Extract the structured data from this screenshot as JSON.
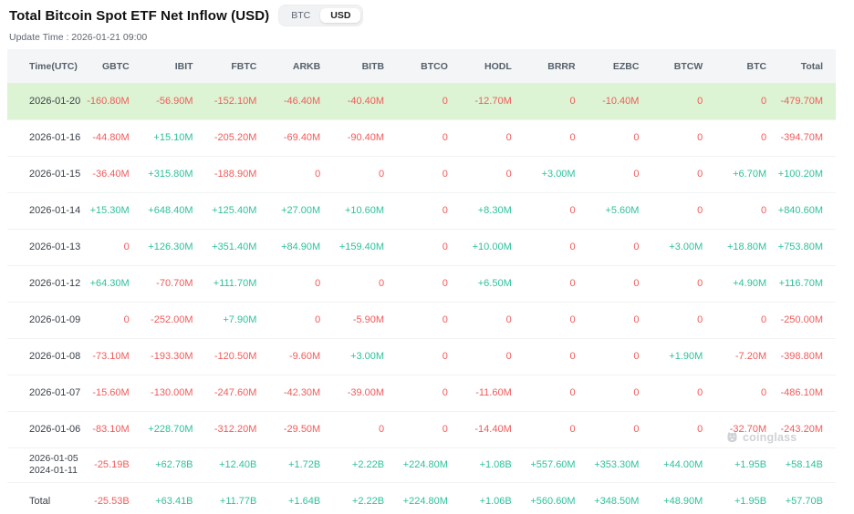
{
  "header": {
    "title": "Total Bitcoin Spot ETF Net Inflow (USD)",
    "update_time": "Update Time : 2026-01-21 09:00",
    "toggle": {
      "options": [
        "BTC",
        "USD"
      ],
      "selected": "USD"
    }
  },
  "colors": {
    "positive": "#2fc19c",
    "negative": "#f15b5b",
    "highlight_row": "#dcf4d3"
  },
  "watermark": {
    "label": "coinglass"
  },
  "table": {
    "columns": [
      "Time(UTC)",
      "GBTC",
      "IBIT",
      "FBTC",
      "ARKB",
      "BITB",
      "BTCO",
      "HODL",
      "BRRR",
      "EZBC",
      "BTCW",
      "BTC",
      "Total"
    ],
    "rows": [
      {
        "date": [
          "2026-01-20"
        ],
        "highlight": true,
        "values": [
          "-160.80M",
          "-56.90M",
          "-152.10M",
          "-46.40M",
          "-40.40M",
          "0",
          "-12.70M",
          "0",
          "-10.40M",
          "0",
          "0",
          "-479.70M"
        ]
      },
      {
        "date": [
          "2026-01-16"
        ],
        "values": [
          "-44.80M",
          "+15.10M",
          "-205.20M",
          "-69.40M",
          "-90.40M",
          "0",
          "0",
          "0",
          "0",
          "0",
          "0",
          "-394.70M"
        ]
      },
      {
        "date": [
          "2026-01-15"
        ],
        "values": [
          "-36.40M",
          "+315.80M",
          "-188.90M",
          "0",
          "0",
          "0",
          "0",
          "+3.00M",
          "0",
          "0",
          "+6.70M",
          "+100.20M"
        ]
      },
      {
        "date": [
          "2026-01-14"
        ],
        "values": [
          "+15.30M",
          "+648.40M",
          "+125.40M",
          "+27.00M",
          "+10.60M",
          "0",
          "+8.30M",
          "0",
          "+5.60M",
          "0",
          "0",
          "+840.60M"
        ]
      },
      {
        "date": [
          "2026-01-13"
        ],
        "values": [
          "0",
          "+126.30M",
          "+351.40M",
          "+84.90M",
          "+159.40M",
          "0",
          "+10.00M",
          "0",
          "0",
          "+3.00M",
          "+18.80M",
          "+753.80M"
        ]
      },
      {
        "date": [
          "2026-01-12"
        ],
        "values": [
          "+64.30M",
          "-70.70M",
          "+111.70M",
          "0",
          "0",
          "0",
          "+6.50M",
          "0",
          "0",
          "0",
          "+4.90M",
          "+116.70M"
        ]
      },
      {
        "date": [
          "2026-01-09"
        ],
        "values": [
          "0",
          "-252.00M",
          "+7.90M",
          "0",
          "-5.90M",
          "0",
          "0",
          "0",
          "0",
          "0",
          "0",
          "-250.00M"
        ]
      },
      {
        "date": [
          "2026-01-08"
        ],
        "values": [
          "-73.10M",
          "-193.30M",
          "-120.50M",
          "-9.60M",
          "+3.00M",
          "0",
          "0",
          "0",
          "0",
          "+1.90M",
          "-7.20M",
          "-398.80M"
        ]
      },
      {
        "date": [
          "2026-01-07"
        ],
        "values": [
          "-15.60M",
          "-130.00M",
          "-247.60M",
          "-42.30M",
          "-39.00M",
          "0",
          "-11.60M",
          "0",
          "0",
          "0",
          "0",
          "-486.10M"
        ]
      },
      {
        "date": [
          "2026-01-06"
        ],
        "values": [
          "-83.10M",
          "+228.70M",
          "-312.20M",
          "-29.50M",
          "0",
          "0",
          "-14.40M",
          "0",
          "0",
          "0",
          "-32.70M",
          "-243.20M"
        ]
      },
      {
        "date": [
          "2026-01-05",
          "2024-01-11"
        ],
        "two_line": true,
        "values": [
          "-25.19B",
          "+62.78B",
          "+12.40B",
          "+1.72B",
          "+2.22B",
          "+224.80M",
          "+1.08B",
          "+557.60M",
          "+353.30M",
          "+44.00M",
          "+1.95B",
          "+58.14B"
        ]
      },
      {
        "date": [
          "Total"
        ],
        "is_total": true,
        "values": [
          "-25.53B",
          "+63.41B",
          "+11.77B",
          "+1.64B",
          "+2.22B",
          "+224.80M",
          "+1.06B",
          "+560.60M",
          "+348.50M",
          "+48.90M",
          "+1.95B",
          "+57.70B"
        ]
      }
    ]
  }
}
